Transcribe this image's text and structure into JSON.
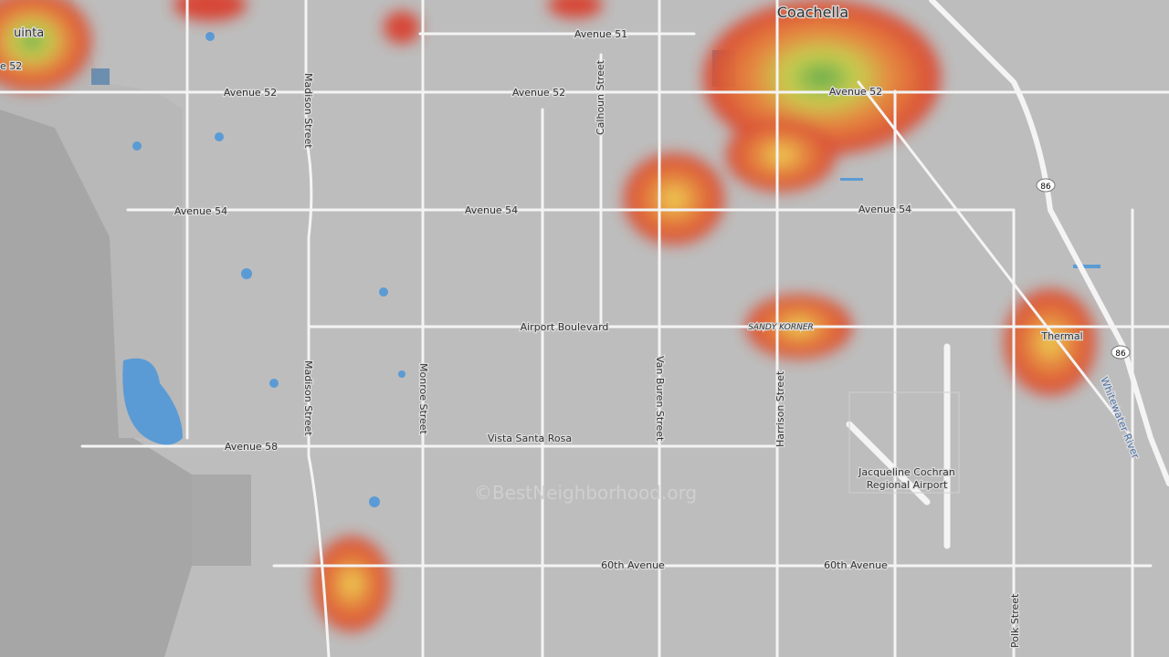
{
  "header": {
    "watermark": "©BestNeighborhood.org"
  },
  "places": {
    "coachella": "Coachella",
    "la_quinta": "uinta",
    "thermal": "Thermal",
    "sandy_korner": "SANDY KORNER",
    "airport": [
      "Jacqueline Cochran",
      "Regional Airport"
    ],
    "river": "Whitewater River"
  },
  "roads": {
    "avenue_51": "Avenue 51",
    "avenue_52": [
      "e 52",
      "Avenue 52",
      "Avenue 52",
      "Avenue 52"
    ],
    "avenue_54": [
      "Avenue 54",
      "Avenue 54",
      "Avenue 54"
    ],
    "airport_blvd": "Airport Boulevard",
    "vista_santa_rosa": "Vista Santa Rosa",
    "avenue_58": "Avenue 58",
    "avenue_60": [
      "60th Avenue",
      "60th Avenue"
    ],
    "madison": [
      "Madison Street",
      "Madison Street"
    ],
    "monroe": "Monroe Street",
    "calhoun": "Calhoun Street",
    "van_buren": "Van Buren Street",
    "harrison": "Harrison Street",
    "polk": "Polk Street",
    "shields": [
      "86",
      "86"
    ]
  }
}
